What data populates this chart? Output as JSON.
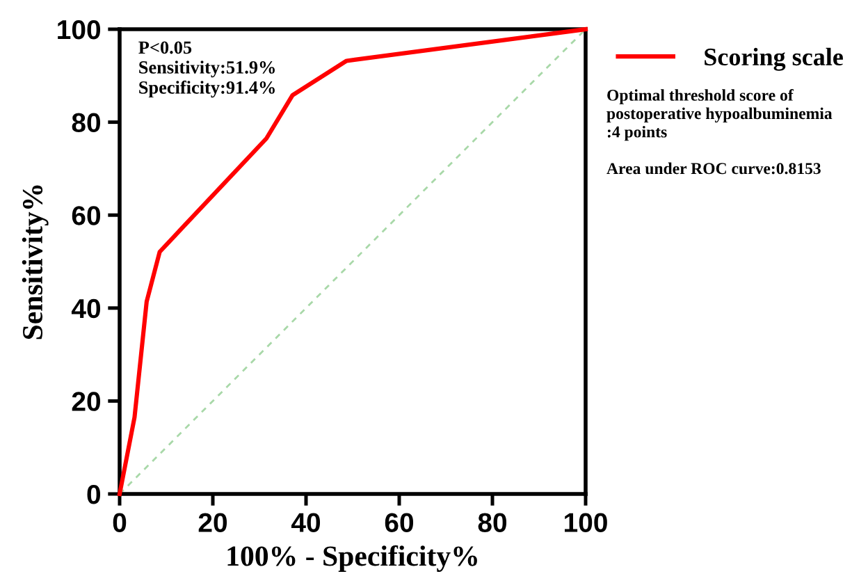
{
  "chart_data": {
    "type": "line",
    "xlabel": "100% - Specificity%",
    "ylabel": "Sensitivity%",
    "xlim": [
      0,
      100
    ],
    "ylim": [
      0,
      100
    ],
    "xticks": [
      0,
      20,
      40,
      60,
      80,
      100
    ],
    "yticks": [
      0,
      20,
      40,
      60,
      80,
      100
    ],
    "grid": false,
    "legend": "top right",
    "marker": "none",
    "series": [
      {
        "name": "Scoring scale",
        "color": "#ff0000",
        "line_style": "solid",
        "x": [
          0,
          3.2,
          5.8,
          8.6,
          31.5,
          37.1,
          48.7,
          100
        ],
        "values": [
          0,
          16.5,
          41.4,
          52.1,
          76.5,
          85.8,
          93.2,
          100
        ]
      },
      {
        "color": "#a8d8a8",
        "line_style": "dashed",
        "x": [
          0,
          100
        ],
        "values": [
          0,
          100
        ]
      }
    ],
    "annotations": [
      "P<0.05\nSensitivity:51.9%\nSpecificity:91.4%",
      "Optimal threshold score of\npostoperative hypoalbuminemia\n:4 points\n\nArea under ROC curve:0.8153"
    ]
  }
}
